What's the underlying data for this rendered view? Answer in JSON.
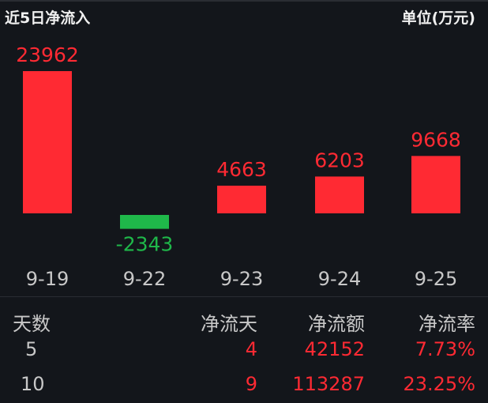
{
  "header": {
    "title": "近5日净流入",
    "unit": "单位(万元)"
  },
  "colors": {
    "positive": "#ff2a33",
    "negative": "#1fb84a",
    "background": "#13161b",
    "text": "#c8c8c8"
  },
  "chart_data": {
    "type": "bar",
    "title": "近5日净流入",
    "unit": "单位(万元)",
    "categories": [
      "9-19",
      "9-22",
      "9-23",
      "9-24",
      "9-25"
    ],
    "values": [
      23962,
      -2343,
      4663,
      6203,
      9668
    ],
    "data_labels": [
      "23962",
      "-2343",
      "4663",
      "6203",
      "9668"
    ],
    "grid": false
  },
  "table": {
    "headers": [
      "天数",
      "净流天",
      "净流额",
      "净流率"
    ],
    "rows": [
      [
        "5",
        "4",
        "42152",
        "7.73%"
      ],
      [
        "10",
        "9",
        "113287",
        "23.25%"
      ]
    ]
  }
}
